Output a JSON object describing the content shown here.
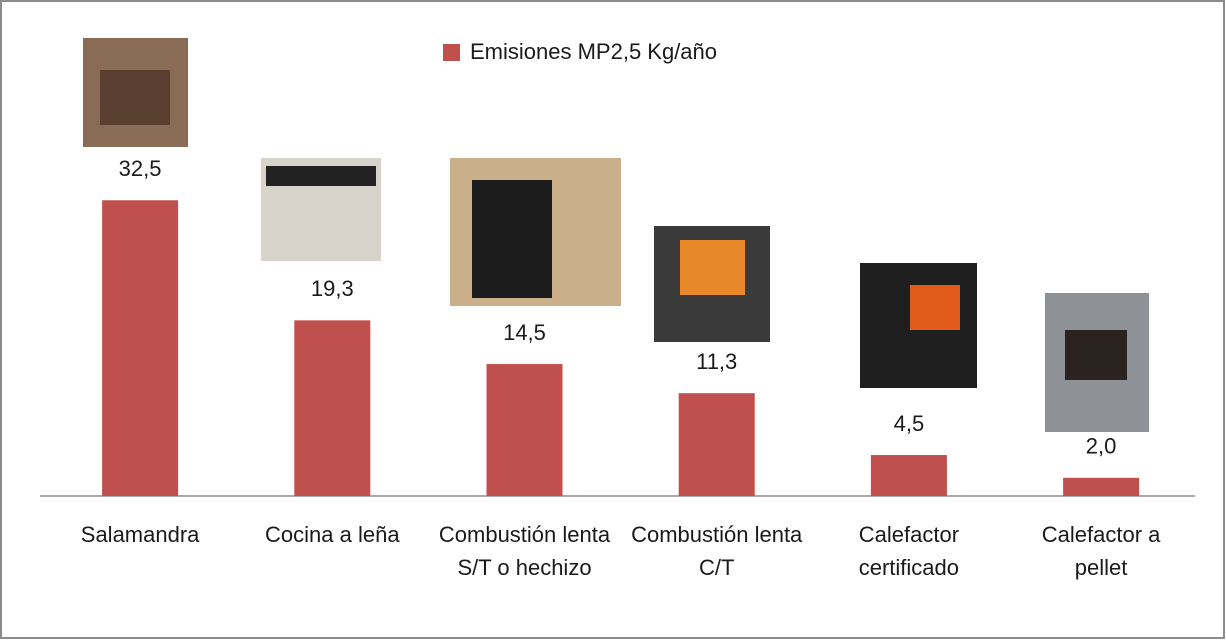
{
  "chart_data": {
    "type": "bar",
    "legend": "Emisiones MP2,5 Kg/año",
    "color": "#c0504d",
    "categories": [
      "Salamandra",
      "Cocina a leña",
      "Combustión lenta S/T o hechizo",
      "Combustión lenta C/T",
      "Calefactor certificado",
      "Calefactor a pellet"
    ],
    "values": [
      32.5,
      19.3,
      14.5,
      11.3,
      4.5,
      2.0
    ],
    "value_labels": [
      "32,5",
      "19,3",
      "14,5",
      "11,3",
      "4,5",
      "2,0"
    ]
  }
}
